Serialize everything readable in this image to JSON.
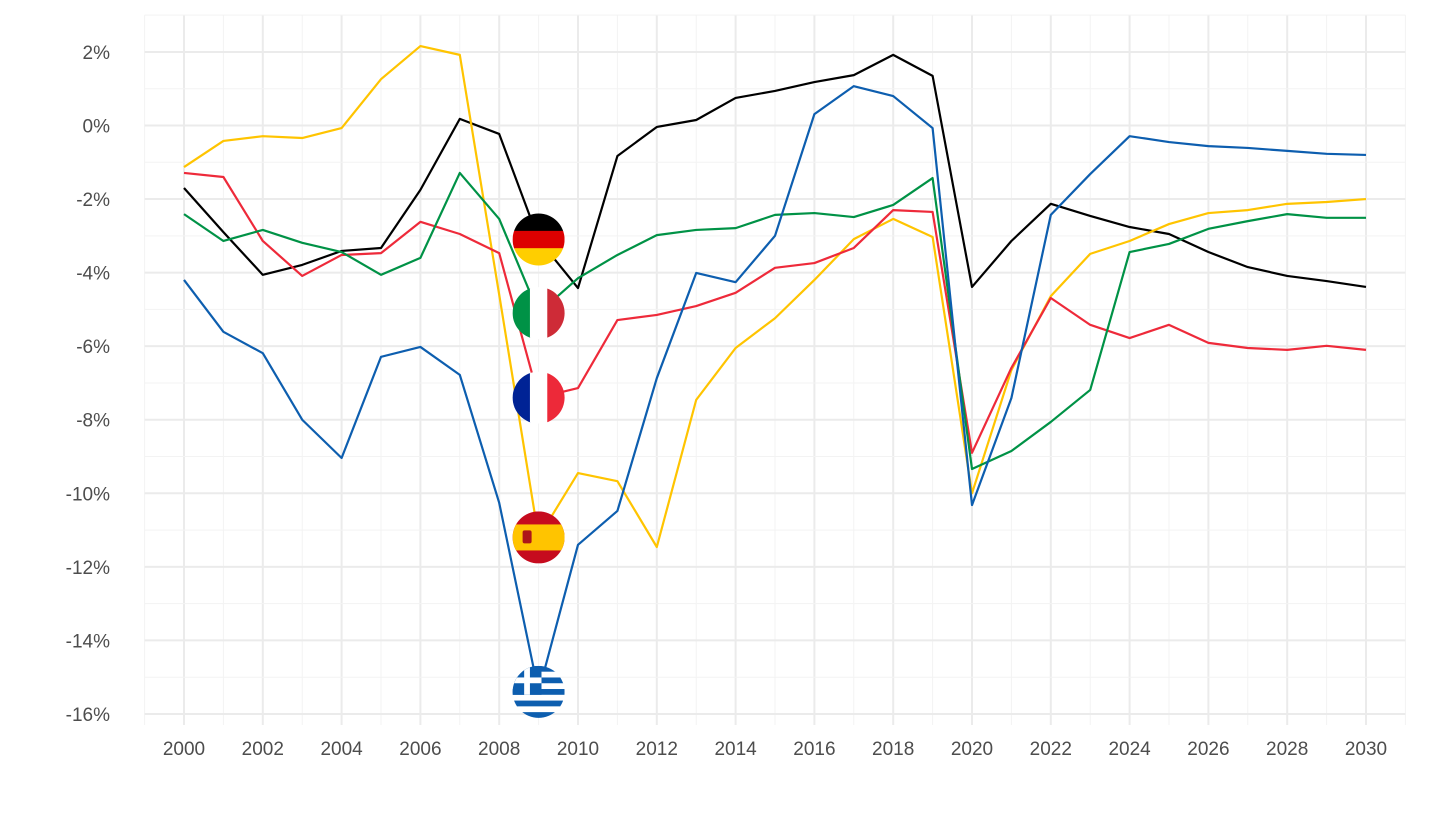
{
  "chart_data": {
    "type": "line",
    "title": "",
    "xlabel": "",
    "ylabel": "",
    "xlim": [
      1999,
      2031
    ],
    "ylim": [
      -16.3,
      3
    ],
    "grid": true,
    "legend": "flags at 2009 data points",
    "flag_year": 2009,
    "x_ticks": [
      2000,
      2002,
      2004,
      2006,
      2008,
      2010,
      2012,
      2014,
      2016,
      2018,
      2020,
      2022,
      2024,
      2026,
      2028,
      2030
    ],
    "x_tick_labels": [
      "2000",
      "2002",
      "2004",
      "2006",
      "2008",
      "2010",
      "2012",
      "2014",
      "2016",
      "2018",
      "2020",
      "2022",
      "2024",
      "2026",
      "2028",
      "2030"
    ],
    "y_ticks": [
      2,
      0,
      -2,
      -4,
      -6,
      -8,
      -10,
      -12,
      -14,
      -16
    ],
    "y_tick_labels": [
      "2%",
      "0%",
      "-2%",
      "-4%",
      "-6%",
      "-8%",
      "-10%",
      "-12%",
      "-14%",
      "-16%"
    ],
    "x": [
      2000,
      2001,
      2002,
      2003,
      2004,
      2005,
      2006,
      2007,
      2008,
      2009,
      2010,
      2011,
      2012,
      2013,
      2014,
      2015,
      2016,
      2017,
      2018,
      2019,
      2020,
      2021,
      2022,
      2023,
      2024,
      2025,
      2026,
      2027,
      2028,
      2029,
      2030
    ],
    "series": [
      {
        "name": "Germany",
        "flag": "de",
        "color": "#000000",
        "values": [
          -1.7,
          -2.9,
          -4.06,
          -3.79,
          -3.41,
          -3.33,
          -1.75,
          0.18,
          -0.23,
          -3.1,
          -4.42,
          -0.83,
          -0.04,
          0.15,
          0.75,
          0.94,
          1.18,
          1.37,
          1.92,
          1.35,
          -4.39,
          -3.14,
          -2.13,
          -2.46,
          -2.76,
          -2.95,
          -3.44,
          -3.85,
          -4.09,
          -4.23,
          -4.39
        ]
      },
      {
        "name": "Spain",
        "flag": "es",
        "color": "#FFC400",
        "values": [
          -1.13,
          -0.42,
          -0.29,
          -0.34,
          -0.07,
          1.26,
          2.16,
          1.92,
          -4.6,
          -11.2,
          -9.45,
          -9.67,
          -11.46,
          -7.46,
          -6.05,
          -5.24,
          -4.2,
          -3.09,
          -2.54,
          -3.03,
          -10.0,
          -6.65,
          -4.64,
          -3.49,
          -3.14,
          -2.68,
          -2.38,
          -2.3,
          -2.13,
          -2.08,
          -2.0
        ]
      },
      {
        "name": "France",
        "flag": "fr",
        "color": "#EE2A3A",
        "values": [
          -1.29,
          -1.4,
          -3.14,
          -4.09,
          -3.52,
          -3.47,
          -2.62,
          -2.95,
          -3.47,
          -7.4,
          -7.14,
          -5.29,
          -5.15,
          -4.91,
          -4.55,
          -3.87,
          -3.74,
          -3.33,
          -2.3,
          -2.35,
          -8.9,
          -6.59,
          -4.69,
          -5.42,
          -5.78,
          -5.42,
          -5.91,
          -6.05,
          -6.1,
          -5.99,
          -6.1
        ]
      },
      {
        "name": "Italy",
        "flag": "it",
        "color": "#009246",
        "values": [
          -2.41,
          -3.14,
          -2.84,
          -3.19,
          -3.44,
          -4.06,
          -3.6,
          -1.29,
          -2.54,
          -5.1,
          -4.15,
          -3.52,
          -2.98,
          -2.84,
          -2.79,
          -2.43,
          -2.38,
          -2.49,
          -2.16,
          -1.43,
          -9.34,
          -8.85,
          -8.06,
          -7.19,
          -3.44,
          -3.22,
          -2.81,
          -2.6,
          -2.41,
          -2.51,
          -2.51
        ]
      },
      {
        "name": "Greece",
        "flag": "gr",
        "color": "#0D5EAF",
        "values": [
          -4.2,
          -5.61,
          -6.19,
          -8.0,
          -9.04,
          -6.29,
          -6.02,
          -6.78,
          -10.26,
          -15.4,
          -11.4,
          -10.48,
          -6.87,
          -4.01,
          -4.26,
          -3.0,
          0.31,
          1.07,
          0.8,
          -0.07,
          -10.32,
          -7.41,
          -2.43,
          -1.32,
          -0.29,
          -0.45,
          -0.56,
          -0.61,
          -0.69,
          -0.77,
          -0.8
        ]
      }
    ]
  }
}
